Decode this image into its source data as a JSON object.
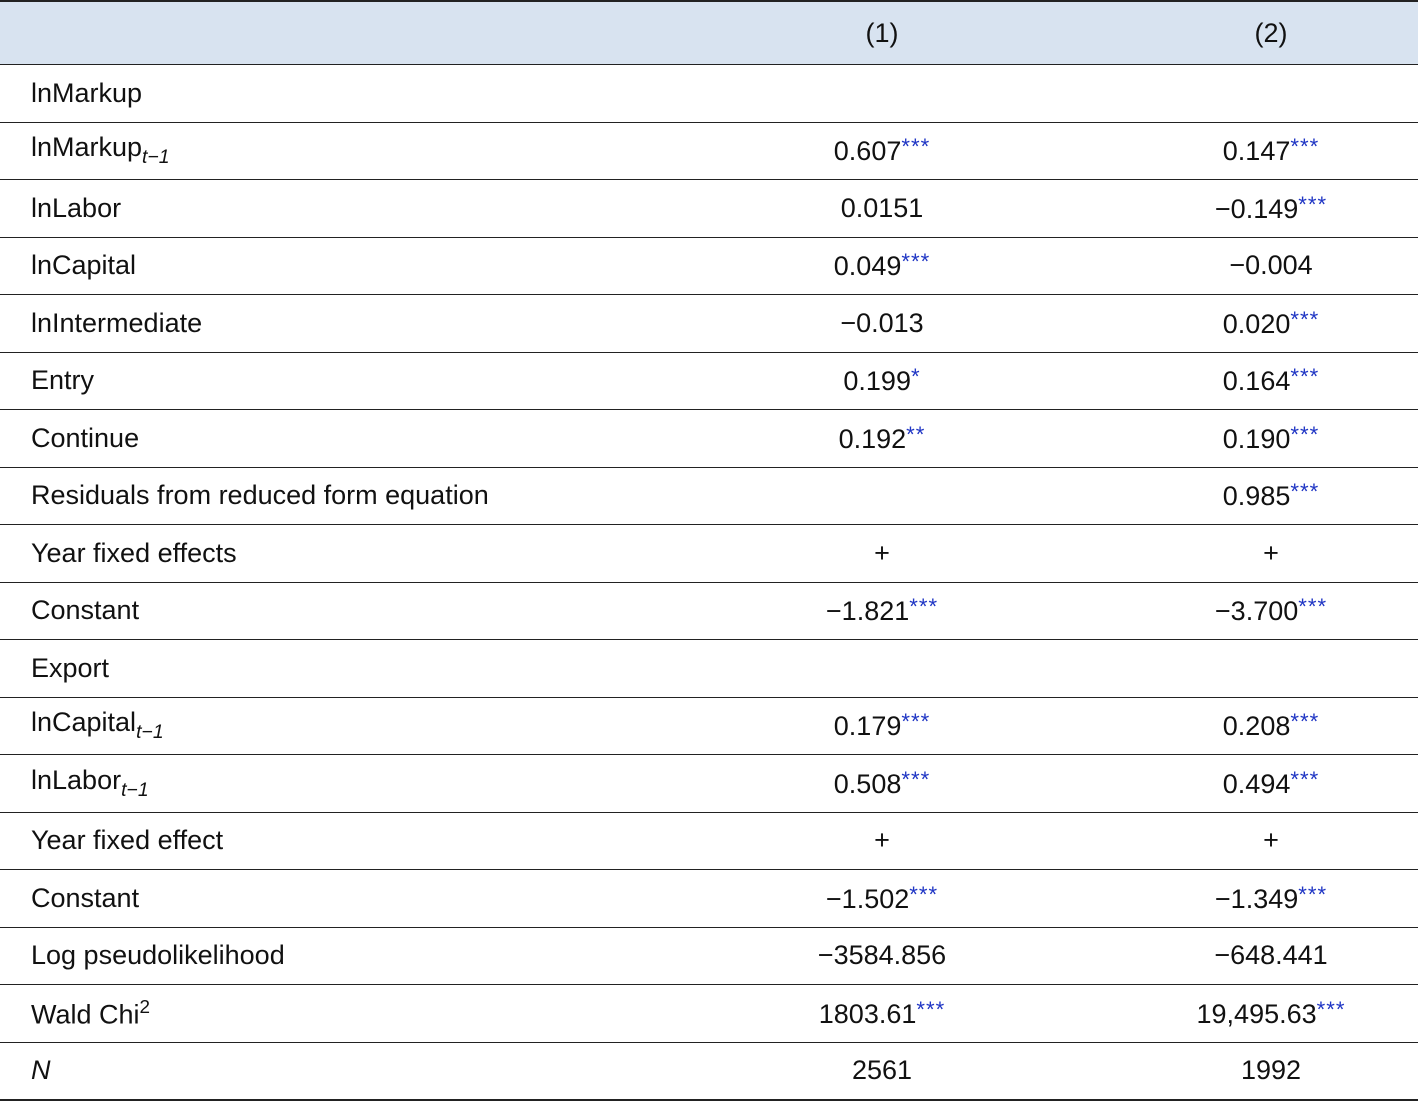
{
  "header": {
    "col1": "(1)",
    "col2": "(2)"
  },
  "rows": [
    {
      "label": "lnMarkup",
      "sub": "",
      "sup": "",
      "v1": "",
      "s1": "",
      "v2": "",
      "s2": ""
    },
    {
      "label": "lnMarkup",
      "sub": "t−1",
      "sup": "",
      "v1": "0.607",
      "s1": "***",
      "v2": "0.147",
      "s2": "***"
    },
    {
      "label": "lnLabor",
      "sub": "",
      "sup": "",
      "v1": "0.0151",
      "s1": "",
      "v2": "−0.149",
      "s2": "***"
    },
    {
      "label": "lnCapital",
      "sub": "",
      "sup": "",
      "v1": "0.049",
      "s1": "***",
      "v2": "−0.004",
      "s2": ""
    },
    {
      "label": "lnIntermediate",
      "sub": "",
      "sup": "",
      "v1": "−0.013",
      "s1": "",
      "v2": "0.020",
      "s2": "***"
    },
    {
      "label": "Entry",
      "sub": "",
      "sup": "",
      "v1": "0.199",
      "s1": "*",
      "v2": "0.164",
      "s2": "***"
    },
    {
      "label": "Continue",
      "sub": "",
      "sup": "",
      "v1": "0.192",
      "s1": "**",
      "v2": "0.190",
      "s2": "***"
    },
    {
      "label": "Residuals from reduced form equation",
      "sub": "",
      "sup": "",
      "v1": "",
      "s1": "",
      "v2": "0.985",
      "s2": "***"
    },
    {
      "label": "Year fixed effects",
      "sub": "",
      "sup": "",
      "v1": "+",
      "s1": "",
      "v2": "+",
      "s2": ""
    },
    {
      "label": "Constant",
      "sub": "",
      "sup": "",
      "v1": "−1.821",
      "s1": "***",
      "v2": "−3.700",
      "s2": "***"
    },
    {
      "label": "Export",
      "sub": "",
      "sup": "",
      "v1": "",
      "s1": "",
      "v2": "",
      "s2": ""
    },
    {
      "label": "lnCapital",
      "sub": "t−1",
      "sup": "",
      "v1": "0.179",
      "s1": "***",
      "v2": "0.208",
      "s2": "***"
    },
    {
      "label": "lnLabor",
      "sub": "t−1",
      "sup": "",
      "v1": "0.508",
      "s1": "***",
      "v2": "0.494",
      "s2": "***"
    },
    {
      "label": "Year fixed effect",
      "sub": "",
      "sup": "",
      "v1": "+",
      "s1": "",
      "v2": "+",
      "s2": ""
    },
    {
      "label": "Constant",
      "sub": "",
      "sup": "",
      "v1": "−1.502",
      "s1": "***",
      "v2": "−1.349",
      "s2": "***"
    },
    {
      "label": "Log pseudolikelihood",
      "sub": "",
      "sup": "",
      "v1": "−3584.856",
      "s1": "",
      "v2": "−648.441",
      "s2": ""
    },
    {
      "label": "Wald Chi",
      "sub": "",
      "sup": "2",
      "v1": "1803.61",
      "s1": "***",
      "v2": "19,495.63",
      "s2": "***"
    },
    {
      "label": "N",
      "sub": "",
      "sup": "",
      "v1": "2561",
      "s1": "",
      "v2": "1992",
      "s2": "",
      "italic": true
    }
  ],
  "colors": {
    "header_bg": "#d8e3f0",
    "star": "#1f35c4"
  }
}
